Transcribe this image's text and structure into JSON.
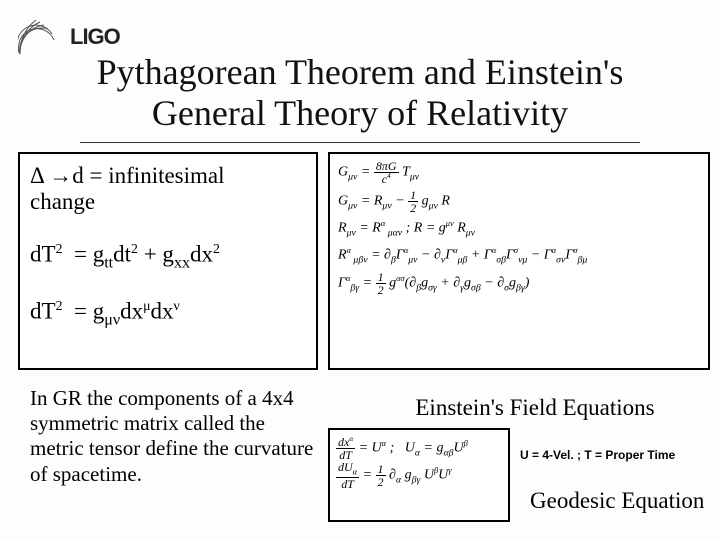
{
  "logo": {
    "text": "LIGO"
  },
  "title_line1": "Pythagorean Theorem and Einstein's",
  "title_line2": "General Theory of Relativity",
  "leftbox": {
    "line1a": "Δ ",
    "line1b": "d = infinitesimal",
    "line2": "change",
    "eq1_html": "dT<sup>2</sup>&nbsp;&nbsp;= g<sub>tt</sub>dt<sup>2</sup> + g<sub>xx</sub>dx<sup>2</sup>",
    "eq2_html": "dT<sup>2</sup>&nbsp;&nbsp;= g<sub>μν</sub>dx<sup>μ</sup>dx<sup>ν</sup>"
  },
  "gr_text": "In GR the components of a 4x4 symmetric matrix called the metric tensor define the curvature of spacetime.",
  "rightbox": {
    "eq1_html": "G<sub>μν</sub> = <span class='frac'><span class='n'>8πG</span><span class='d'>c<sup>4</sup></span></span> T<sub>μν</sub>",
    "eq2_html": "G<sub>μν</sub> = R<sub>μν</sub> − <span class='frac'><span class='n'>1</span><span class='d'>2</span></span> g<sub>μν</sub> R",
    "eq3_html": "R<sub>μν</sub> = R<sup>α</sup><sub>&nbsp;μαν</sub> ; R = g<sup>μν</sup> R<sub>μν</sub>",
    "eq4_html": "R<sup>α</sup><sub>&nbsp;μβν</sub> = ∂<sub>β</sub>Γ<sup>α</sup><sub>μν</sub> − ∂<sub>ν</sub>Γ<sup>α</sup><sub>μβ</sub> + Γ<sup>α</sup><sub>σβ</sub>Γ<sup>σ</sup><sub>νμ</sub> − Γ<sup>α</sup><sub>σν</sub>Γ<sup>σ</sup><sub>βμ</sub>",
    "eq5_html": "Γ<sup>α</sup><sub>βγ</sub> = <span class='frac'><span class='n'>1</span><span class='d'>2</span></span> g<sup>ασ</sup>(∂<sub>β</sub>g<sub>σγ</sub> + ∂<sub>γ</sub>g<sub>σβ</sub> − ∂<sub>σ</sub>g<sub>βγ</sub>)"
  },
  "efe_label": "Einstein's Field Equations",
  "velbox": {
    "eq1_html": "<span class='frac'><span class='n'>dx<sup>α</sup></span><span class='d'>dT</span></span> = U<sup>α</sup> ;&nbsp;&nbsp; U<sub>α</sub> = g<sub>αβ</sub>U<sup>β</sup>",
    "eq2_html": "<span class='frac'><span class='n'>dU<sub>α</sub></span><span class='d'>dT</span></span> = <span class='frac'><span class='n'>1</span><span class='d'>2</span></span> ∂<sub>α</sub> g<sub>βγ</sub> U<sup>β</sup>U<sup>γ</sup>"
  },
  "uvel_label": "U = 4-Vel. ; T = Proper Time",
  "geo_label": "Geodesic Equation"
}
